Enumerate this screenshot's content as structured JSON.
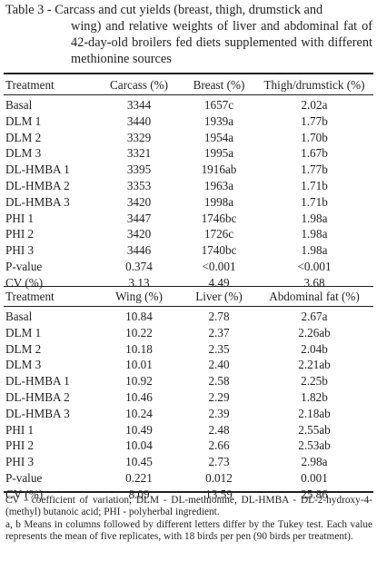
{
  "caption": {
    "label": "Table 3 - ",
    "first": "Carcass and cut yields (breast, thigh, drumstick and",
    "rest": "wing) and relative weights of liver and abdominal fat of 42-day-old broilers fed diets supplemented with different methionine sources"
  },
  "table1": {
    "headers": [
      "Treatment",
      "Carcass (%)",
      "Breast (%)",
      "Thigh/drumstick (%)"
    ],
    "rows": [
      [
        "Basal",
        "3344",
        "1657c",
        "2.02a"
      ],
      [
        "DLM 1",
        "3440",
        "1939a",
        "1.77b"
      ],
      [
        "DLM 2",
        "3329",
        "1954a",
        "1.70b"
      ],
      [
        "DLM 3",
        "3321",
        "1995a",
        "1.67b"
      ],
      [
        "DL-HMBA 1",
        "3395",
        "1916ab",
        "1.77b"
      ],
      [
        "DL-HMBA 2",
        "3353",
        "1963a",
        "1.71b"
      ],
      [
        "DL-HMBA 3",
        "3420",
        "1998a",
        "1.71b"
      ],
      [
        "PHI 1",
        "3447",
        "1746bc",
        "1.98a"
      ],
      [
        "PHI 2",
        "3420",
        "1726c",
        "1.98a"
      ],
      [
        "PHI 3",
        "3446",
        "1740bc",
        "1.98a"
      ],
      [
        "P-value",
        "0.374",
        "<0.001",
        "<0.001"
      ],
      [
        "CV (%)",
        "3.13",
        "4.49",
        "3.68"
      ]
    ]
  },
  "table2": {
    "headers": [
      "Treatment",
      "Wing (%)",
      "Liver (%)",
      "Abdominal fat (%)"
    ],
    "rows": [
      [
        "Basal",
        "10.84",
        "2.78",
        "2.67a"
      ],
      [
        "DLM 1",
        "10.22",
        "2.37",
        "2.26ab"
      ],
      [
        "DLM 2",
        "10.18",
        "2.35",
        "2.04b"
      ],
      [
        "DLM 3",
        "10.01",
        "2.40",
        "2.21ab"
      ],
      [
        "DL-HMBA 1",
        "10.92",
        "2.58",
        "2.25b"
      ],
      [
        "DL-HMBA 2",
        "10.46",
        "2.29",
        "1.82b"
      ],
      [
        "DL-HMBA 3",
        "10.24",
        "2.39",
        "2.18ab"
      ],
      [
        "PHI 1",
        "10.49",
        "2.48",
        "2.55ab"
      ],
      [
        "PHI 2",
        "10.04",
        "2.66",
        "2.53ab"
      ],
      [
        "PHI 3",
        "10.45",
        "2.73",
        "2.98a"
      ],
      [
        "P-value",
        "0.221",
        "0.012",
        "0.001"
      ],
      [
        "CV (%)",
        "8.09",
        "13.59",
        "25.86"
      ]
    ]
  },
  "footnotes": [
    "CV - coefficient of variation; DLM - DL-methionine, DL-HMBA - DL-2-hydroxy-4-(methyl) butanoic acid; PHI - polyherbal ingredient.",
    "a, b Means in columns followed by different letters differ by the Tukey test. Each value represents the mean of five replicates, with 18 birds per pen (90 birds per treatment)."
  ]
}
